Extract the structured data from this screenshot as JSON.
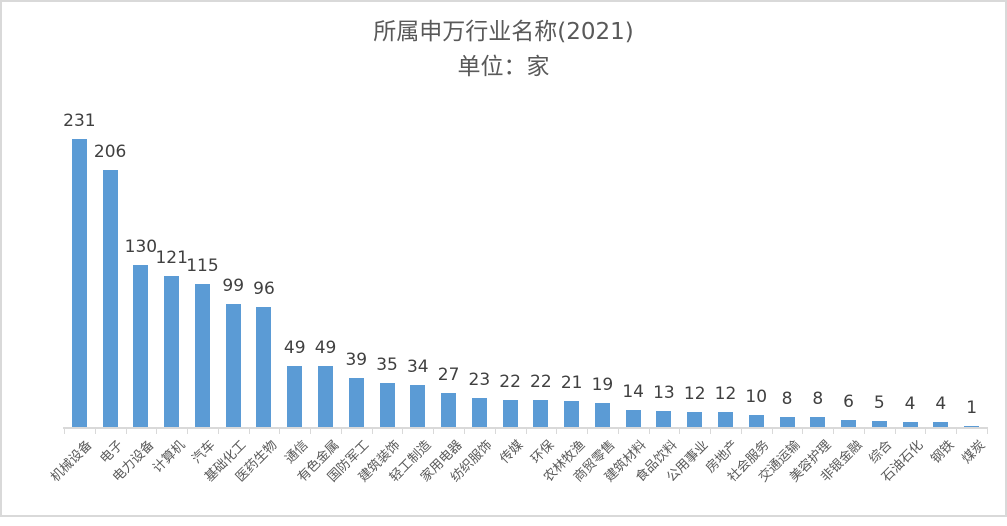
{
  "chart_data": {
    "type": "bar",
    "title": "所属申万行业名称(2021)",
    "subtitle": "单位：家",
    "categories": [
      "机械设备",
      "电子",
      "电力设备",
      "计算机",
      "汽车",
      "基础化工",
      "医药生物",
      "通信",
      "有色金属",
      "国防军工",
      "建筑装饰",
      "轻工制造",
      "家用电器",
      "纺织服饰",
      "传媒",
      "环保",
      "农林牧渔",
      "商贸零售",
      "建筑材料",
      "食品饮料",
      "公用事业",
      "房地产",
      "社会服务",
      "交通运输",
      "美容护理",
      "非银金融",
      "综合",
      "石油石化",
      "钢铁",
      "煤炭"
    ],
    "values": [
      231,
      206,
      130,
      121,
      115,
      99,
      96,
      49,
      49,
      39,
      35,
      34,
      27,
      23,
      22,
      22,
      21,
      19,
      14,
      13,
      12,
      12,
      10,
      8,
      8,
      6,
      5,
      4,
      4,
      1
    ],
    "data_labels": true,
    "xlabel": "",
    "ylabel": "",
    "ylim": [
      0,
      240
    ],
    "grid": false,
    "legend": "none",
    "x_tick_rotation": 45,
    "bar_color": "#5B9BD5",
    "axis_color": "#D9D9D9",
    "title_color": "#595959",
    "value_label_color": "#404040",
    "category_label_color": "#595959",
    "border_color": "#D9D9D9"
  }
}
